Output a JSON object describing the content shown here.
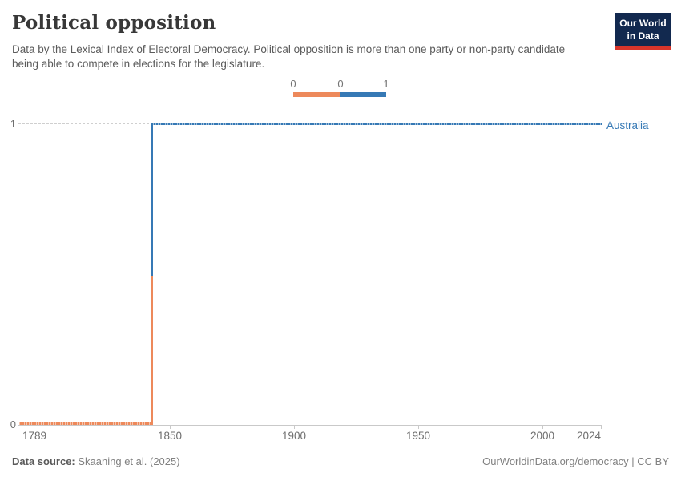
{
  "header": {
    "title": "Political opposition",
    "subtitle": "Data by the Lexical Index of Electoral Democracy. Political opposition is more than one party or non-party candidate being able to compete in elections for the legislature.",
    "logo": {
      "line1": "Our World",
      "line2": "in Data",
      "bg_color": "#12294F",
      "bar_color": "#D8352B"
    }
  },
  "legend": {
    "tick_labels": [
      "0",
      "0",
      "1"
    ],
    "bins": [
      {
        "value": 0,
        "color": "#ED895B"
      },
      {
        "value": 1,
        "color": "#3679B5"
      }
    ]
  },
  "chart_data": {
    "type": "line",
    "style": "step",
    "title": "Political opposition",
    "entity": "Australia",
    "x_range": [
      1789,
      2024
    ],
    "y_range": [
      0,
      1
    ],
    "x_tick_labels": [
      "1789",
      "1850",
      "1900",
      "1950",
      "2000",
      "2024"
    ],
    "y_tick_labels": [
      "0",
      "1"
    ],
    "grid": "dashed-horizontal-at-1",
    "legend_position": "top-center",
    "marker_interval_years": 1,
    "series": [
      {
        "name": "Australia",
        "label_color": "#3679B5",
        "value_colors": {
          "0": "#ED895B",
          "1": "#3679B5"
        },
        "transition_year": 1843,
        "segments": [
          {
            "from_year": 1789,
            "to_year": 1842,
            "value": 0
          },
          {
            "from_year": 1843,
            "to_year": 2024,
            "value": 1
          }
        ]
      }
    ]
  },
  "footer": {
    "data_source_label": "Data source:",
    "data_source_value": "Skaaning et al. (2025)",
    "attribution": "OurWorldinData.org/democracy | CC BY"
  }
}
